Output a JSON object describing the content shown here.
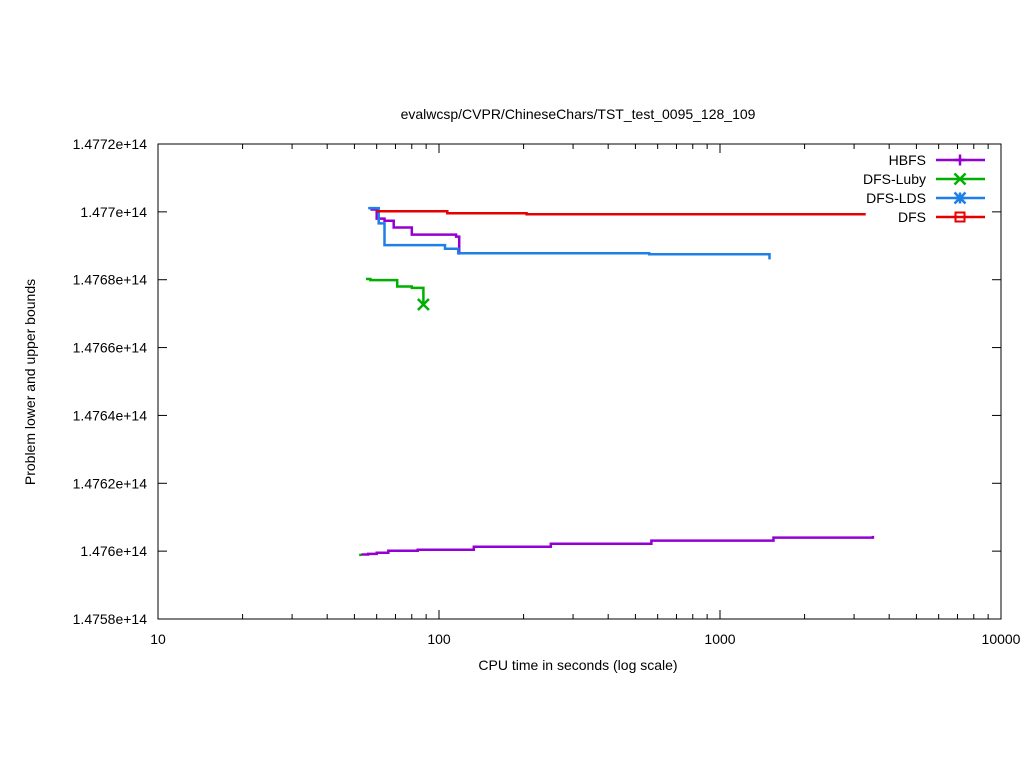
{
  "chart_data": {
    "type": "line",
    "title": "evalwcsp/CVPR/ChineseChars/TST_test_0095_128_109",
    "xlabel": "CPU time in seconds (log scale)",
    "ylabel": "Problem lower and upper bounds",
    "x_scale": "log",
    "xlim": [
      10,
      10000
    ],
    "ylim": [
      147580000000000,
      147720000000000
    ],
    "x_ticks": [
      10,
      100,
      1000,
      10000
    ],
    "x_tick_labels": [
      "10",
      "100",
      "1000",
      "10000"
    ],
    "y_ticks": [
      147580000000000,
      147620000000000,
      147640000000000,
      147660000000000,
      147680000000000,
      147700000000000,
      147720000000000
    ],
    "y_tick_labels": [
      "1.4758e+14",
      "1.4762e+14",
      "1.4764e+14",
      "1.4766e+14",
      "1.4768e+14",
      "1.477e+14",
      "1.4772e+14"
    ],
    "y_ticks_all": [
      147580000000000,
      147600000000000,
      147620000000000,
      147640000000000,
      147660000000000,
      147680000000000,
      147700000000000,
      147720000000000
    ],
    "y_tick_labels_all": [
      "1.4758e+14",
      "1.476e+14",
      "1.4762e+14",
      "1.4764e+14",
      "1.4766e+14",
      "1.4768e+14",
      "1.477e+14",
      "1.4772e+14"
    ],
    "grid": false,
    "legend_position": "top-right",
    "series": [
      {
        "name": "HBFS",
        "color": "#9400d3",
        "marker": "plus",
        "segments": [
          [
            [
              57,
              147700700000000
            ],
            [
              60,
              147700700000000
            ],
            [
              60,
              147698000000000
            ],
            [
              64,
              147698000000000
            ],
            [
              64,
              147697400000000
            ],
            [
              69,
              147697400000000
            ],
            [
              69,
              147695400000000
            ],
            [
              80,
              147695400000000
            ],
            [
              80,
              147693300000000
            ],
            [
              115,
              147693300000000
            ],
            [
              115,
              147692700000000
            ],
            [
              118,
              147692700000000
            ],
            [
              118,
              147687400000000
            ]
          ],
          [
            [
              53,
              147599000000000
            ],
            [
              56,
              147599000000000
            ],
            [
              56,
              147599200000000
            ],
            [
              60,
              147599200000000
            ],
            [
              60,
              147599500000000
            ],
            [
              66,
              147599500000000
            ],
            [
              66,
              147600100000000
            ],
            [
              84,
              147600100000000
            ],
            [
              84,
              147600400000000
            ],
            [
              133,
              147600400000000
            ],
            [
              133,
              147601300000000
            ],
            [
              250,
              147601300000000
            ],
            [
              250,
              147602200000000
            ],
            [
              570,
              147602200000000
            ],
            [
              570,
              147603100000000
            ],
            [
              1550,
              147603100000000
            ],
            [
              1550,
              147604000000000
            ],
            [
              3500,
              147604000000000
            ],
            [
              3500,
              147604500000000
            ]
          ]
        ]
      },
      {
        "name": "DFS-Luby",
        "color": "#00b000",
        "marker": "x",
        "segments": [
          [
            [
              55,
              147680200000000
            ],
            [
              57,
              147680200000000
            ],
            [
              57,
              147679900000000
            ],
            [
              71,
              147679900000000
            ],
            [
              71,
              147678000000000
            ],
            [
              80,
              147678000000000
            ],
            [
              80,
              147677600000000
            ],
            [
              88,
              147677600000000
            ],
            [
              88,
              147672700000000
            ]
          ],
          [
            [
              52,
              147598900000000
            ],
            [
              53,
              147598900000000
            ]
          ]
        ]
      },
      {
        "name": "DFS-LDS",
        "color": "#1e7fe6",
        "marker": "star",
        "segments": [
          [
            [
              56,
              147701100000000
            ],
            [
              61,
              147701100000000
            ],
            [
              61,
              147696600000000
            ],
            [
              64,
              147696600000000
            ],
            [
              64,
              147690200000000
            ],
            [
              105,
              147690200000000
            ],
            [
              105,
              147689100000000
            ],
            [
              117,
              147689100000000
            ],
            [
              117,
              147687800000000
            ],
            [
              560,
              147687800000000
            ],
            [
              560,
              147687500000000
            ],
            [
              1500,
              147687500000000
            ],
            [
              1500,
              147686000000000
            ]
          ]
        ]
      },
      {
        "name": "DFS",
        "color": "#e60000",
        "marker": "square",
        "segments": [
          [
            [
              60,
              147700200000000
            ],
            [
              107,
              147700200000000
            ],
            [
              107,
              147699600000000
            ],
            [
              205,
              147699600000000
            ],
            [
              205,
              147699300000000
            ],
            [
              3300,
              147699300000000
            ]
          ]
        ]
      }
    ]
  }
}
